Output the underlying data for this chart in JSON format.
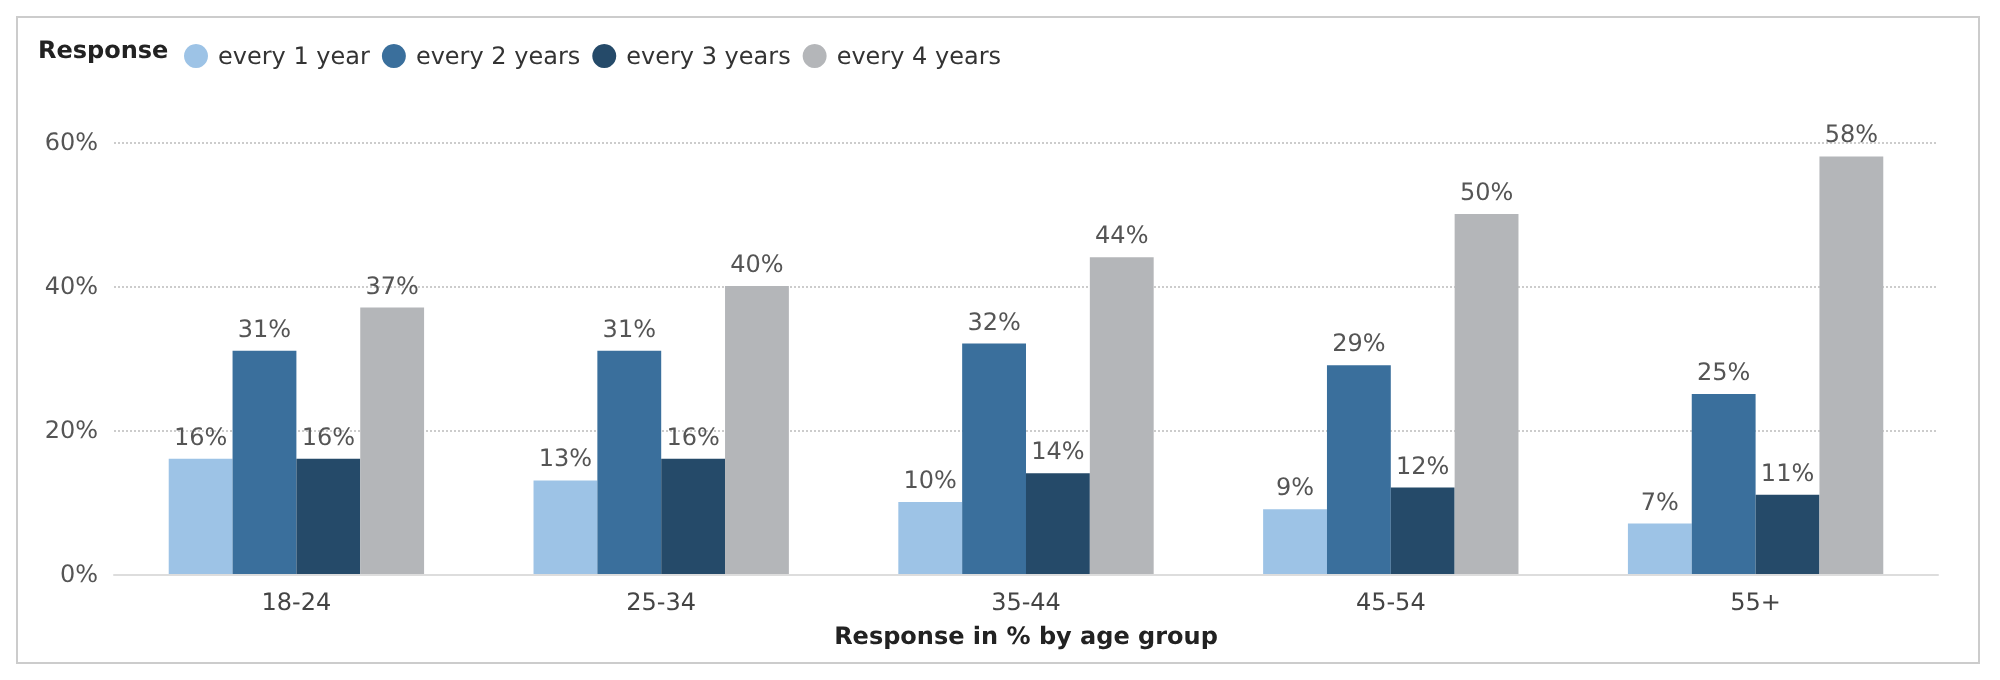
{
  "chart_data": {
    "type": "bar",
    "xlabel": "Response in % by age group",
    "legend_title": "Response",
    "legend": "top left",
    "grid": "y",
    "categories": [
      "18-24",
      "25-34",
      "35-44",
      "45-54",
      "55+"
    ],
    "series": [
      {
        "name": "every 1 year",
        "color": "#9dc3e6",
        "values": [
          16,
          13,
          10,
          9,
          7
        ],
        "value_labels": [
          "16%",
          "13%",
          "10%",
          "9%",
          "7%"
        ]
      },
      {
        "name": "every 2 years",
        "color": "#3a6f9c",
        "values": [
          31,
          31,
          32,
          29,
          25
        ],
        "value_labels": [
          "31%",
          "31%",
          "32%",
          "29%",
          "25%"
        ]
      },
      {
        "name": "every 3 years",
        "color": "#254a69",
        "values": [
          16,
          16,
          14,
          12,
          11
        ],
        "value_labels": [
          "16%",
          "16%",
          "14%",
          "12%",
          "11%"
        ]
      },
      {
        "name": "every 4 years",
        "color": "#b4b6b9",
        "values": [
          37,
          40,
          44,
          50,
          58
        ],
        "value_labels": [
          "37%",
          "40%",
          "44%",
          "50%",
          "58%"
        ]
      }
    ],
    "ylim": [
      0,
      60
    ],
    "yticks": [
      {
        "value": 0,
        "label": "0%"
      },
      {
        "value": 20,
        "label": "20%"
      },
      {
        "value": 40,
        "label": "40%"
      },
      {
        "value": 60,
        "label": "60%"
      }
    ]
  }
}
